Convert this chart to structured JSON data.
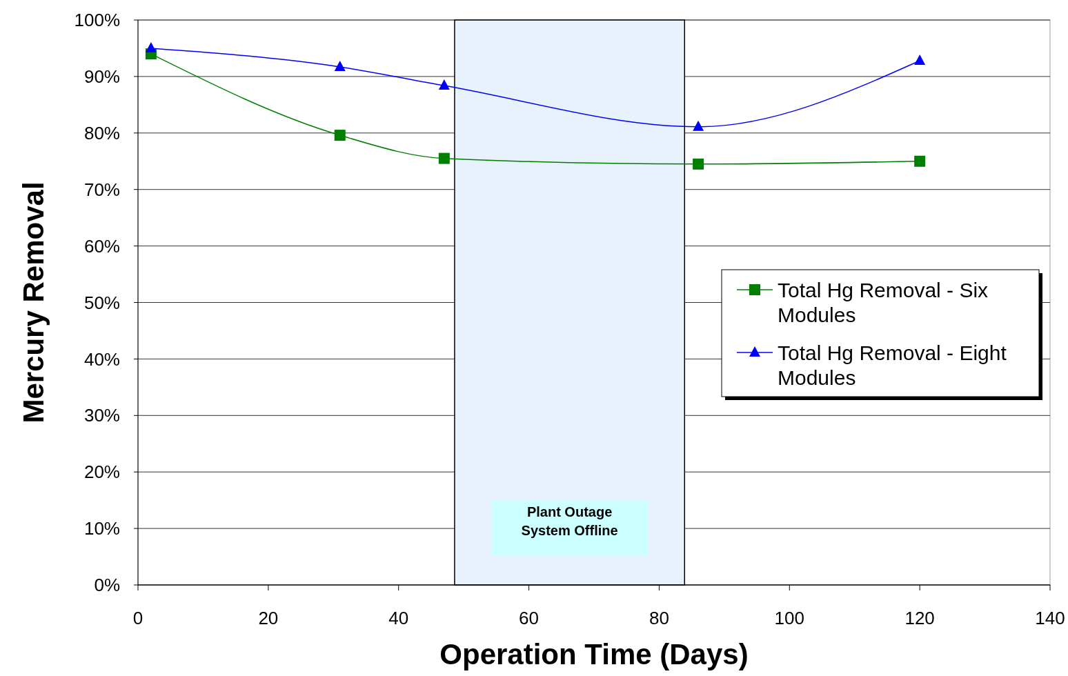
{
  "chart_data": {
    "type": "line",
    "xlabel": "Operation Time (Days)",
    "ylabel": "Mercury Removal",
    "xlim": [
      0,
      140
    ],
    "xticks": [
      0,
      20,
      40,
      60,
      80,
      100,
      120,
      140
    ],
    "ylim": [
      0,
      100
    ],
    "yticks": [
      {
        "value": 0,
        "label": "0%"
      },
      {
        "value": 10,
        "label": "10%"
      },
      {
        "value": 20,
        "label": "20%"
      },
      {
        "value": 30,
        "label": "30%"
      },
      {
        "value": 40,
        "label": "40%"
      },
      {
        "value": 50,
        "label": "50%"
      },
      {
        "value": 60,
        "label": "60%"
      },
      {
        "value": 70,
        "label": "70%"
      },
      {
        "value": 80,
        "label": "80%"
      },
      {
        "value": 90,
        "label": "90%"
      },
      {
        "value": 100,
        "label": "100%"
      }
    ],
    "grid": "y",
    "legend": "right",
    "x": [
      2,
      31,
      47,
      86,
      120
    ],
    "series": [
      {
        "name": "Total Hg Removal - Six Modules",
        "color": "#008000",
        "marker": "square",
        "values": [
          94,
          79.6,
          75.5,
          74.5,
          75
        ]
      },
      {
        "name": "Total Hg Removal - Eight Modules",
        "color": "#0000ff",
        "marker": "triangle",
        "values": [
          95,
          91.7,
          88.4,
          81.1,
          92.8
        ]
      }
    ],
    "bands": [
      {
        "axis": "x",
        "from": 48.6,
        "to": 83.9,
        "label": "Plant Outage\nSystem Offline",
        "color": "#e8f2fc"
      }
    ]
  }
}
